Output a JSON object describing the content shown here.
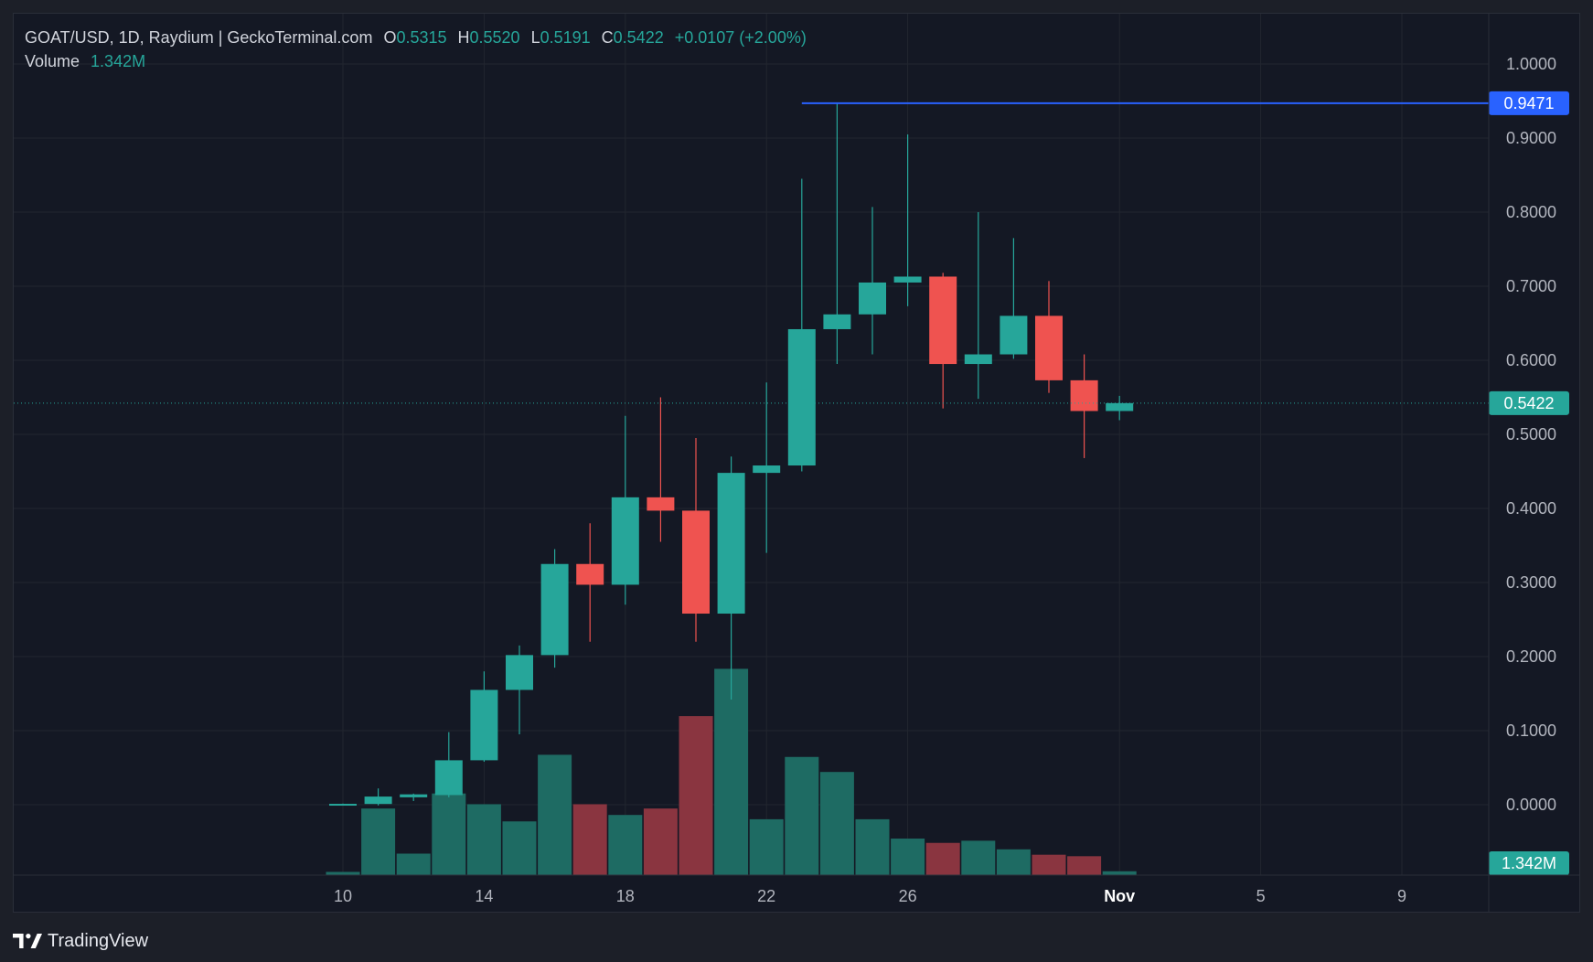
{
  "legend": {
    "symbol": "GOAT/USD, 1D, Raydium | GeckoTerminal.com",
    "open_label": "O",
    "open_value": "0.5315",
    "high_label": "H",
    "high_value": "0.5520",
    "low_label": "L",
    "low_value": "0.5191",
    "close_label": "C",
    "close_value": "0.5422",
    "change": "+0.0107 (+2.00%)",
    "volume_label": "Volume",
    "volume_value": "1.342M"
  },
  "footer": {
    "brand": "TradingView",
    "icon": "tradingview-logo-icon"
  },
  "colors": {
    "up": "#26a69a",
    "down": "#ef5350",
    "vol_up": "#1e6b63",
    "vol_down": "#8a3540",
    "high_line": "#2962ff",
    "background": "#141824",
    "grid": "#22262f"
  },
  "chart_data": {
    "type": "candlestick",
    "title": "GOAT/USD, 1D, Raydium | GeckoTerminal.com",
    "x_ticks": [
      "10",
      "14",
      "18",
      "22",
      "26",
      "Nov",
      "5",
      "9"
    ],
    "y_ticks": [
      "1.0000",
      "0.9000",
      "0.8000",
      "0.7000",
      "0.6000",
      "0.5000",
      "0.4000",
      "0.3000",
      "0.2000",
      "0.1000",
      "0.0000"
    ],
    "ylim": [
      -0.095,
      1.07
    ],
    "high_marker": {
      "value": 0.9471,
      "label": "0.9471",
      "start_day": 23
    },
    "last_price": {
      "value": 0.5422,
      "label": "0.5422"
    },
    "volume_badge": "1.342M",
    "candles": [
      {
        "day": 10,
        "o": 0.001,
        "h": 0.0015,
        "l": 0.0005,
        "c": 0.0012,
        "v": 0.015
      },
      {
        "day": 11,
        "o": 0.001,
        "h": 0.022,
        "l": -0.001,
        "c": 0.011,
        "v": 0.31
      },
      {
        "day": 12,
        "o": 0.01,
        "h": 0.015,
        "l": 0.005,
        "c": 0.014,
        "v": 0.1
      },
      {
        "day": 13,
        "o": 0.013,
        "h": 0.098,
        "l": 0.01,
        "c": 0.06,
        "v": 0.38
      },
      {
        "day": 14,
        "o": 0.06,
        "h": 0.18,
        "l": 0.058,
        "c": 0.155,
        "v": 0.33
      },
      {
        "day": 15,
        "o": 0.155,
        "h": 0.215,
        "l": 0.095,
        "c": 0.202,
        "v": 0.25
      },
      {
        "day": 16,
        "o": 0.202,
        "h": 0.345,
        "l": 0.185,
        "c": 0.325,
        "v": 0.56
      },
      {
        "day": 17,
        "o": 0.325,
        "h": 0.38,
        "l": 0.22,
        "c": 0.297,
        "v": 0.33
      },
      {
        "day": 18,
        "o": 0.297,
        "h": 0.525,
        "l": 0.27,
        "c": 0.415,
        "v": 0.28
      },
      {
        "day": 19,
        "o": 0.415,
        "h": 0.55,
        "l": 0.355,
        "c": 0.397,
        "v": 0.31
      },
      {
        "day": 20,
        "o": 0.397,
        "h": 0.495,
        "l": 0.22,
        "c": 0.258,
        "v": 0.74
      },
      {
        "day": 21,
        "o": 0.258,
        "h": 0.47,
        "l": 0.142,
        "c": 0.448,
        "v": 0.96
      },
      {
        "day": 22,
        "o": 0.448,
        "h": 0.57,
        "l": 0.34,
        "c": 0.458,
        "v": 0.26
      },
      {
        "day": 23,
        "o": 0.458,
        "h": 0.845,
        "l": 0.45,
        "c": 0.642,
        "v": 0.55
      },
      {
        "day": 24,
        "o": 0.642,
        "h": 0.9471,
        "l": 0.595,
        "c": 0.662,
        "v": 0.48
      },
      {
        "day": 25,
        "o": 0.662,
        "h": 0.807,
        "l": 0.608,
        "c": 0.705,
        "v": 0.26
      },
      {
        "day": 26,
        "o": 0.705,
        "h": 0.905,
        "l": 0.673,
        "c": 0.713,
        "v": 0.17
      },
      {
        "day": 27,
        "o": 0.713,
        "h": 0.718,
        "l": 0.535,
        "c": 0.595,
        "v": 0.15
      },
      {
        "day": 28,
        "o": 0.595,
        "h": 0.8,
        "l": 0.548,
        "c": 0.608,
        "v": 0.16
      },
      {
        "day": 29,
        "o": 0.608,
        "h": 0.765,
        "l": 0.602,
        "c": 0.66,
        "v": 0.12
      },
      {
        "day": 30,
        "o": 0.66,
        "h": 0.707,
        "l": 0.556,
        "c": 0.573,
        "v": 0.095
      },
      {
        "day": 31,
        "o": 0.573,
        "h": 0.608,
        "l": 0.468,
        "c": 0.5315,
        "v": 0.088
      },
      {
        "day": 32,
        "o": 0.5315,
        "h": 0.552,
        "l": 0.5191,
        "c": 0.5422,
        "v": 0.018
      }
    ]
  }
}
